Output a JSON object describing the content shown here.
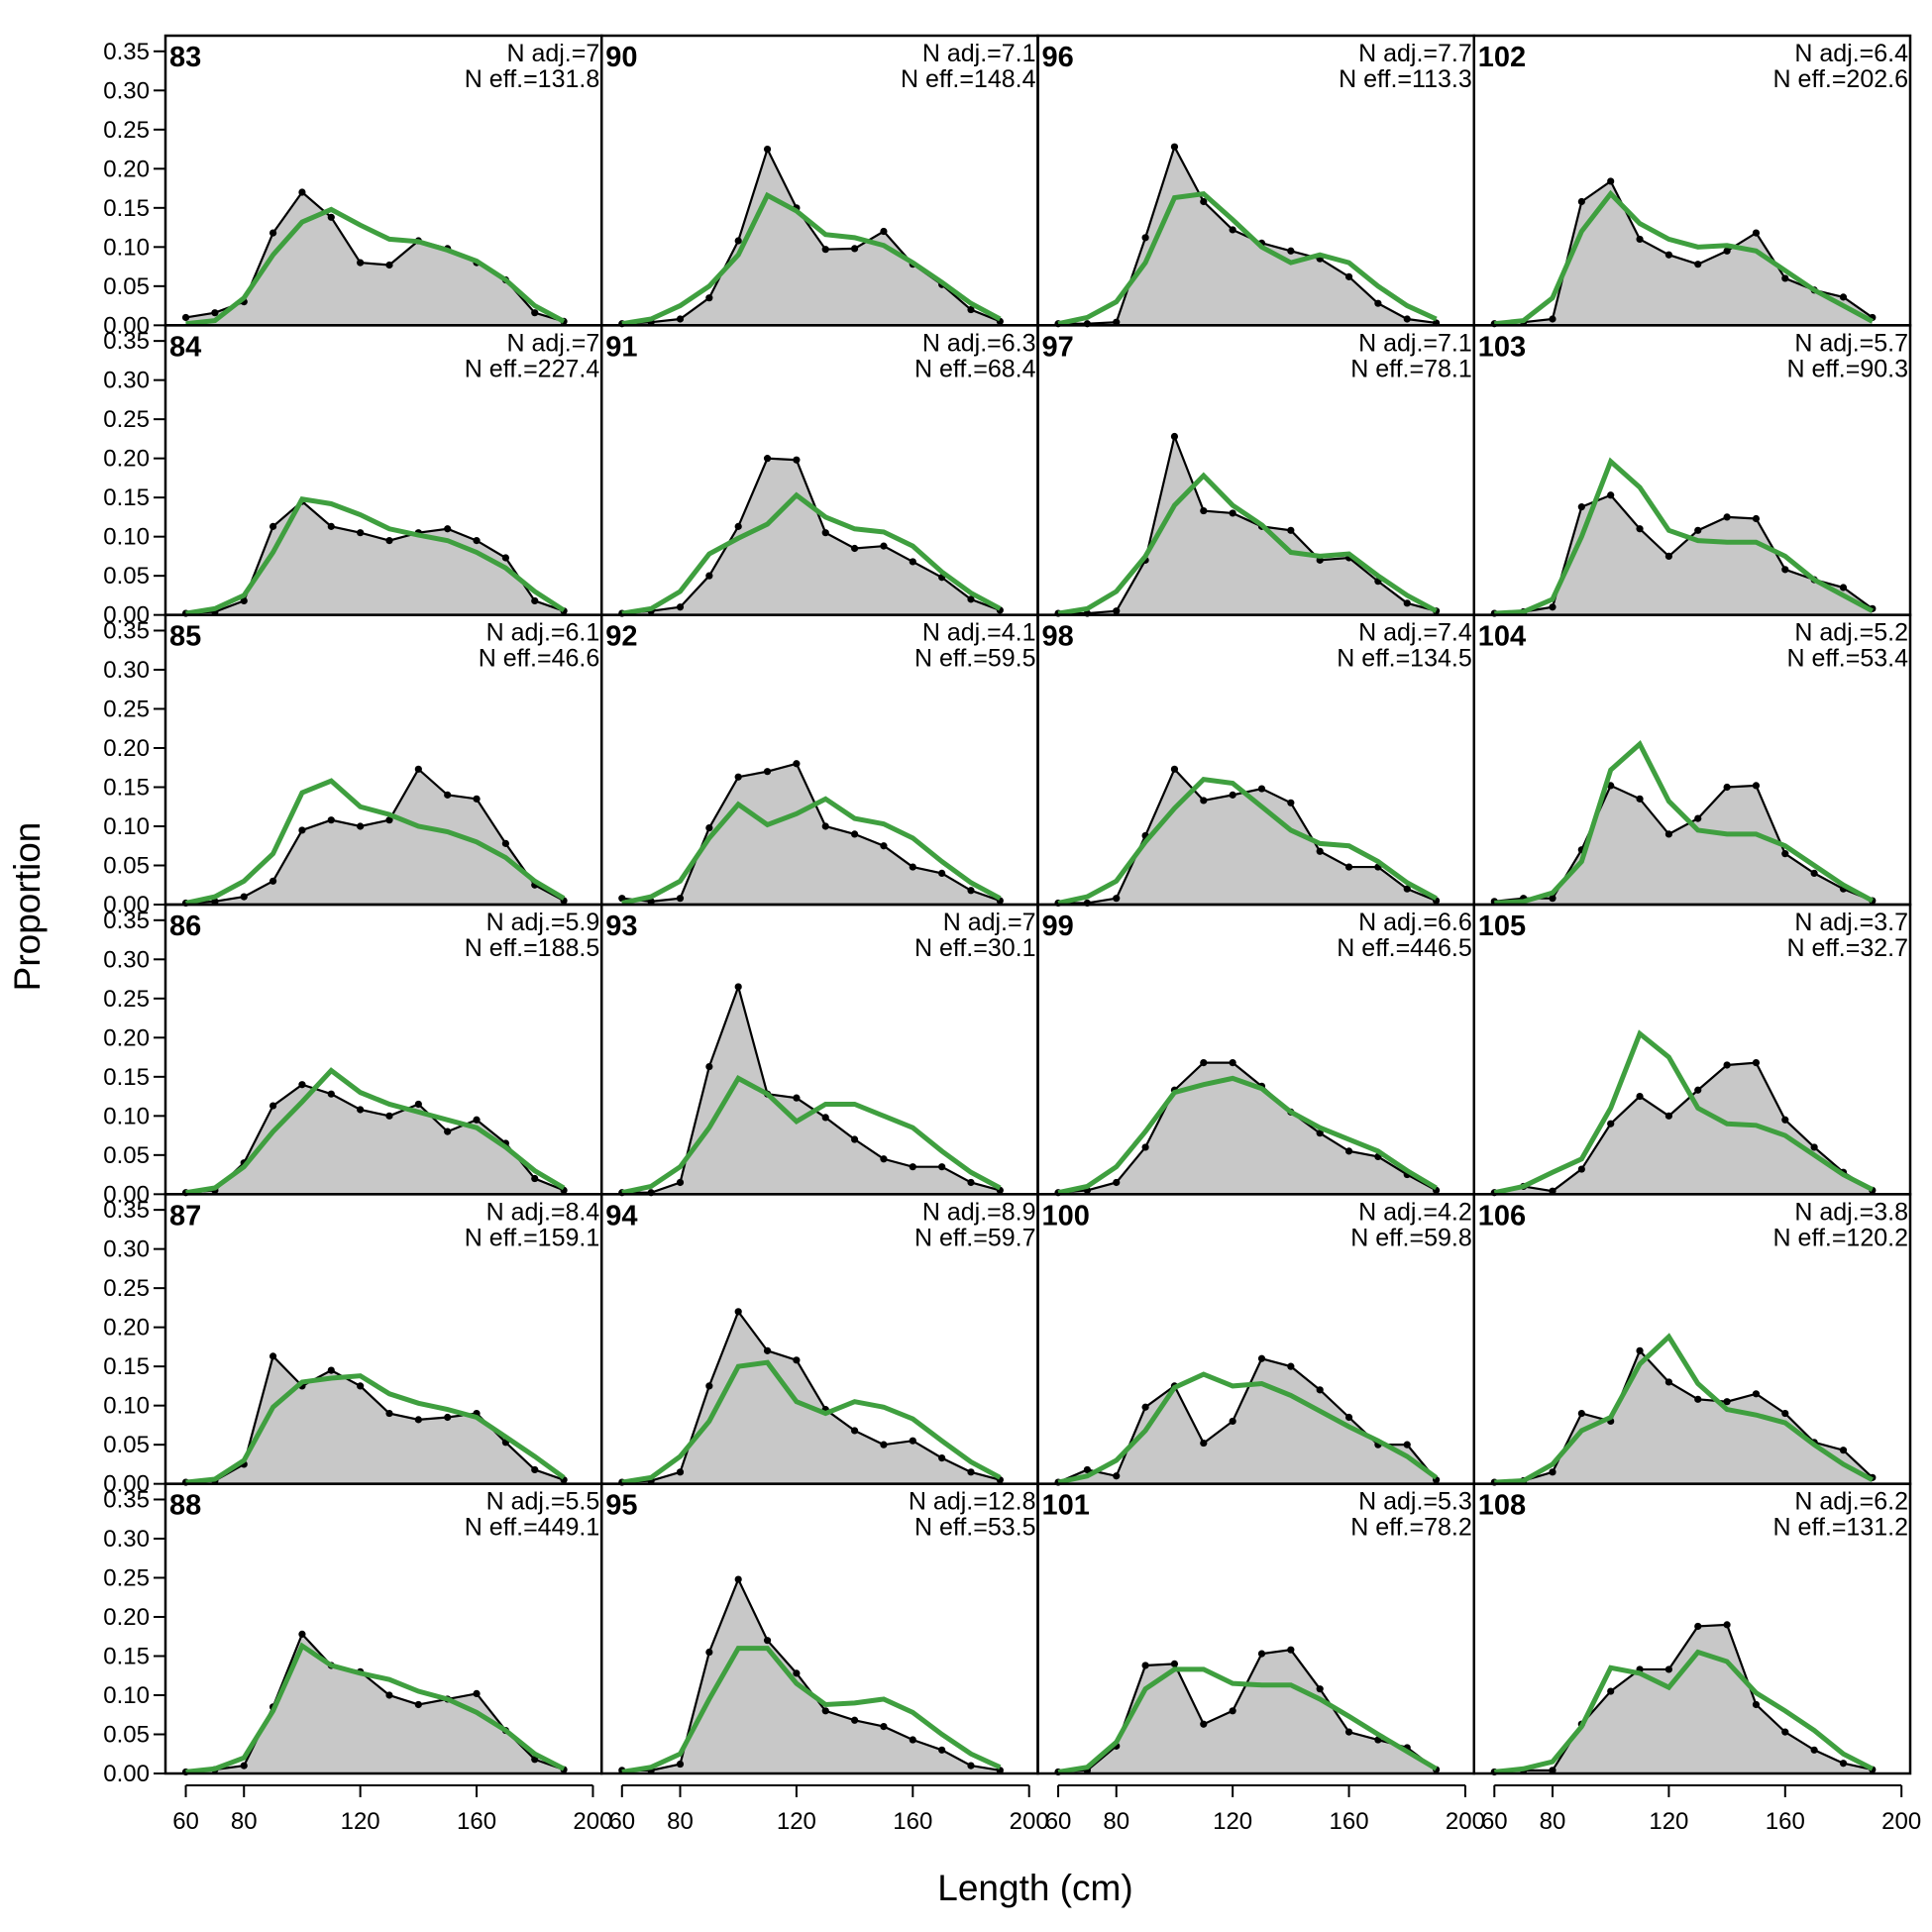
{
  "chart_data": {
    "type": "line",
    "xlabel": "Length (cm)",
    "ylabel": "Proportion",
    "xlim": [
      53,
      203
    ],
    "ylim": [
      0,
      0.37
    ],
    "x_ticks": [
      60,
      80,
      120,
      160,
      200
    ],
    "y_ticks": [
      "0.00",
      "0.05",
      "0.10",
      "0.15",
      "0.20",
      "0.25",
      "0.30",
      "0.35"
    ],
    "x": [
      60,
      70,
      80,
      90,
      100,
      110,
      120,
      130,
      140,
      150,
      160,
      170,
      180,
      190
    ],
    "grid": "4 columns x 6 rows",
    "colors": {
      "observed_fill": "#c8c8c8",
      "observed_line": "#000000",
      "expected_line": "#3f9f3f"
    },
    "panels": [
      {
        "label": "83",
        "n_adj": "N adj.=7",
        "n_eff": "N eff.=131.8",
        "observed": [
          0.01,
          0.016,
          0.03,
          0.118,
          0.17,
          0.138,
          0.08,
          0.077,
          0.108,
          0.098,
          0.08,
          0.058,
          0.016,
          0.005
        ],
        "expected": [
          0.002,
          0.006,
          0.035,
          0.09,
          0.132,
          0.148,
          0.128,
          0.11,
          0.107,
          0.096,
          0.082,
          0.058,
          0.025,
          0.005
        ]
      },
      {
        "label": "90",
        "n_adj": "N adj.=7.1",
        "n_eff": "N eff.=148.4",
        "observed": [
          0.002,
          0.004,
          0.008,
          0.035,
          0.108,
          0.225,
          0.15,
          0.097,
          0.098,
          0.12,
          0.078,
          0.052,
          0.02,
          0.005
        ],
        "expected": [
          0.002,
          0.008,
          0.025,
          0.05,
          0.09,
          0.166,
          0.146,
          0.116,
          0.112,
          0.102,
          0.08,
          0.055,
          0.028,
          0.008
        ]
      },
      {
        "label": "96",
        "n_adj": "N adj.=7.7",
        "n_eff": "N eff.=113.3",
        "observed": [
          0.002,
          0.002,
          0.004,
          0.112,
          0.228,
          0.158,
          0.122,
          0.105,
          0.095,
          0.085,
          0.062,
          0.028,
          0.008,
          0.003
        ],
        "expected": [
          0.002,
          0.01,
          0.03,
          0.08,
          0.163,
          0.168,
          0.135,
          0.1,
          0.08,
          0.09,
          0.08,
          0.05,
          0.025,
          0.008
        ]
      },
      {
        "label": "102",
        "n_adj": "N adj.=6.4",
        "n_eff": "N eff.=202.6",
        "observed": [
          0.002,
          0.004,
          0.008,
          0.158,
          0.184,
          0.11,
          0.09,
          0.078,
          0.095,
          0.118,
          0.06,
          0.045,
          0.036,
          0.01
        ],
        "expected": [
          0.002,
          0.006,
          0.035,
          0.12,
          0.168,
          0.13,
          0.11,
          0.1,
          0.102,
          0.095,
          0.07,
          0.045,
          0.025,
          0.005
        ]
      },
      {
        "label": "84",
        "n_adj": "N adj.=7",
        "n_eff": "N eff.=227.4",
        "observed": [
          0.002,
          0.004,
          0.018,
          0.113,
          0.145,
          0.113,
          0.105,
          0.095,
          0.105,
          0.11,
          0.095,
          0.073,
          0.018,
          0.005
        ],
        "expected": [
          0.002,
          0.008,
          0.025,
          0.08,
          0.148,
          0.142,
          0.128,
          0.11,
          0.102,
          0.095,
          0.08,
          0.06,
          0.03,
          0.006
        ]
      },
      {
        "label": "91",
        "n_adj": "N adj.=6.3",
        "n_eff": "N eff.=68.4",
        "observed": [
          0.002,
          0.005,
          0.01,
          0.05,
          0.113,
          0.2,
          0.198,
          0.105,
          0.085,
          0.088,
          0.068,
          0.048,
          0.02,
          0.006
        ],
        "expected": [
          0.002,
          0.008,
          0.03,
          0.078,
          0.098,
          0.116,
          0.153,
          0.125,
          0.11,
          0.106,
          0.088,
          0.055,
          0.028,
          0.008
        ]
      },
      {
        "label": "97",
        "n_adj": "N adj.=7.1",
        "n_eff": "N eff.=78.1",
        "observed": [
          0.002,
          0.002,
          0.005,
          0.07,
          0.228,
          0.133,
          0.13,
          0.113,
          0.108,
          0.07,
          0.073,
          0.043,
          0.015,
          0.005
        ],
        "expected": [
          0.002,
          0.008,
          0.03,
          0.075,
          0.14,
          0.178,
          0.14,
          0.115,
          0.08,
          0.075,
          0.078,
          0.05,
          0.025,
          0.005
        ]
      },
      {
        "label": "103",
        "n_adj": "N adj.=5.7",
        "n_eff": "N eff.=90.3",
        "observed": [
          0.002,
          0.004,
          0.01,
          0.138,
          0.153,
          0.11,
          0.075,
          0.108,
          0.125,
          0.123,
          0.058,
          0.045,
          0.035,
          0.008
        ],
        "expected": [
          0.002,
          0.004,
          0.02,
          0.1,
          0.196,
          0.163,
          0.108,
          0.095,
          0.093,
          0.093,
          0.075,
          0.045,
          0.025,
          0.005
        ]
      },
      {
        "label": "85",
        "n_adj": "N adj.=6.1",
        "n_eff": "N eff.=46.6",
        "observed": [
          0.002,
          0.004,
          0.01,
          0.03,
          0.095,
          0.108,
          0.1,
          0.108,
          0.173,
          0.14,
          0.135,
          0.078,
          0.025,
          0.005
        ],
        "expected": [
          0.002,
          0.01,
          0.03,
          0.065,
          0.143,
          0.158,
          0.125,
          0.115,
          0.1,
          0.093,
          0.08,
          0.06,
          0.03,
          0.008
        ]
      },
      {
        "label": "92",
        "n_adj": "N adj.=4.1",
        "n_eff": "N eff.=59.5",
        "observed": [
          0.008,
          0.004,
          0.008,
          0.098,
          0.163,
          0.17,
          0.18,
          0.1,
          0.09,
          0.075,
          0.048,
          0.04,
          0.018,
          0.005
        ],
        "expected": [
          0.002,
          0.01,
          0.03,
          0.085,
          0.128,
          0.102,
          0.116,
          0.135,
          0.11,
          0.103,
          0.085,
          0.055,
          0.028,
          0.008
        ]
      },
      {
        "label": "98",
        "n_adj": "N adj.=7.4",
        "n_eff": "N eff.=134.5",
        "observed": [
          0.002,
          0.002,
          0.008,
          0.088,
          0.173,
          0.133,
          0.14,
          0.148,
          0.13,
          0.068,
          0.048,
          0.048,
          0.02,
          0.005
        ],
        "expected": [
          0.002,
          0.01,
          0.03,
          0.08,
          0.123,
          0.16,
          0.155,
          0.125,
          0.095,
          0.078,
          0.075,
          0.055,
          0.028,
          0.008
        ]
      },
      {
        "label": "104",
        "n_adj": "N adj.=5.2",
        "n_eff": "N eff.=53.4",
        "observed": [
          0.004,
          0.008,
          0.008,
          0.07,
          0.152,
          0.135,
          0.09,
          0.11,
          0.15,
          0.152,
          0.065,
          0.04,
          0.02,
          0.005
        ],
        "expected": [
          0.002,
          0.004,
          0.015,
          0.055,
          0.172,
          0.205,
          0.132,
          0.095,
          0.09,
          0.09,
          0.075,
          0.05,
          0.025,
          0.005
        ]
      },
      {
        "label": "86",
        "n_adj": "N adj.=5.9",
        "n_eff": "N eff.=188.5",
        "observed": [
          0.002,
          0.005,
          0.04,
          0.113,
          0.14,
          0.128,
          0.108,
          0.1,
          0.115,
          0.08,
          0.095,
          0.065,
          0.02,
          0.005
        ],
        "expected": [
          0.002,
          0.008,
          0.035,
          0.08,
          0.118,
          0.158,
          0.13,
          0.115,
          0.105,
          0.095,
          0.085,
          0.06,
          0.03,
          0.008
        ]
      },
      {
        "label": "93",
        "n_adj": "N adj.=7",
        "n_eff": "N eff.=30.1",
        "observed": [
          0.002,
          0.002,
          0.015,
          0.163,
          0.265,
          0.128,
          0.123,
          0.098,
          0.07,
          0.045,
          0.035,
          0.035,
          0.015,
          0.005
        ],
        "expected": [
          0.002,
          0.01,
          0.035,
          0.085,
          0.148,
          0.128,
          0.093,
          0.115,
          0.115,
          0.1,
          0.085,
          0.055,
          0.028,
          0.008
        ]
      },
      {
        "label": "99",
        "n_adj": "N adj.=6.6",
        "n_eff": "N eff.=446.5",
        "observed": [
          0.002,
          0.005,
          0.015,
          0.06,
          0.133,
          0.168,
          0.168,
          0.138,
          0.105,
          0.078,
          0.055,
          0.048,
          0.025,
          0.005
        ],
        "expected": [
          0.002,
          0.01,
          0.035,
          0.08,
          0.13,
          0.14,
          0.148,
          0.135,
          0.105,
          0.085,
          0.07,
          0.055,
          0.03,
          0.008
        ]
      },
      {
        "label": "105",
        "n_adj": "N adj.=3.7",
        "n_eff": "N eff.=32.7",
        "observed": [
          0.002,
          0.01,
          0.004,
          0.032,
          0.09,
          0.125,
          0.1,
          0.133,
          0.165,
          0.168,
          0.095,
          0.06,
          0.028,
          0.005
        ],
        "expected": [
          0.002,
          0.01,
          0.028,
          0.045,
          0.11,
          0.205,
          0.175,
          0.11,
          0.09,
          0.088,
          0.075,
          0.05,
          0.025,
          0.006
        ]
      },
      {
        "label": "87",
        "n_adj": "N adj.=8.4",
        "n_eff": "N eff.=159.1",
        "observed": [
          0.002,
          0.004,
          0.025,
          0.163,
          0.125,
          0.145,
          0.125,
          0.09,
          0.082,
          0.085,
          0.09,
          0.053,
          0.018,
          0.005
        ],
        "expected": [
          0.002,
          0.006,
          0.03,
          0.098,
          0.13,
          0.135,
          0.138,
          0.115,
          0.103,
          0.095,
          0.085,
          0.06,
          0.035,
          0.008
        ]
      },
      {
        "label": "94",
        "n_adj": "N adj.=8.9",
        "n_eff": "N eff.=59.7",
        "observed": [
          0.002,
          0.004,
          0.015,
          0.125,
          0.22,
          0.17,
          0.158,
          0.095,
          0.068,
          0.05,
          0.055,
          0.033,
          0.015,
          0.005
        ],
        "expected": [
          0.002,
          0.008,
          0.035,
          0.08,
          0.15,
          0.155,
          0.105,
          0.09,
          0.105,
          0.098,
          0.083,
          0.055,
          0.028,
          0.008
        ]
      },
      {
        "label": "100",
        "n_adj": "N adj.=4.2",
        "n_eff": "N eff.=59.8",
        "observed": [
          0.002,
          0.018,
          0.01,
          0.098,
          0.125,
          0.052,
          0.08,
          0.16,
          0.15,
          0.12,
          0.085,
          0.05,
          0.05,
          0.005
        ],
        "expected": [
          0.002,
          0.01,
          0.03,
          0.068,
          0.123,
          0.14,
          0.125,
          0.128,
          0.113,
          0.093,
          0.073,
          0.055,
          0.035,
          0.008
        ]
      },
      {
        "label": "106",
        "n_adj": "N adj.=3.8",
        "n_eff": "N eff.=120.2",
        "observed": [
          0.002,
          0.004,
          0.015,
          0.09,
          0.08,
          0.17,
          0.13,
          0.108,
          0.105,
          0.115,
          0.09,
          0.053,
          0.043,
          0.008
        ],
        "expected": [
          0.002,
          0.004,
          0.025,
          0.068,
          0.085,
          0.153,
          0.188,
          0.128,
          0.095,
          0.088,
          0.078,
          0.05,
          0.025,
          0.005
        ]
      },
      {
        "label": "88",
        "n_adj": "N adj.=5.5",
        "n_eff": "N eff.=449.1",
        "observed": [
          0.002,
          0.005,
          0.01,
          0.085,
          0.178,
          0.138,
          0.13,
          0.1,
          0.088,
          0.095,
          0.102,
          0.055,
          0.018,
          0.005
        ],
        "expected": [
          0.002,
          0.006,
          0.02,
          0.08,
          0.163,
          0.138,
          0.128,
          0.12,
          0.105,
          0.095,
          0.078,
          0.055,
          0.025,
          0.006
        ]
      },
      {
        "label": "95",
        "n_adj": "N adj.=12.8",
        "n_eff": "N eff.=53.5",
        "observed": [
          0.004,
          0.004,
          0.012,
          0.155,
          0.248,
          0.17,
          0.128,
          0.08,
          0.068,
          0.06,
          0.043,
          0.03,
          0.01,
          0.004
        ],
        "expected": [
          0.002,
          0.008,
          0.025,
          0.095,
          0.16,
          0.16,
          0.115,
          0.088,
          0.09,
          0.095,
          0.078,
          0.05,
          0.025,
          0.008
        ]
      },
      {
        "label": "101",
        "n_adj": "N adj.=5.3",
        "n_eff": "N eff.=78.2",
        "observed": [
          0.002,
          0.004,
          0.035,
          0.138,
          0.14,
          0.063,
          0.08,
          0.153,
          0.158,
          0.108,
          0.053,
          0.043,
          0.033,
          0.005
        ],
        "expected": [
          0.002,
          0.008,
          0.04,
          0.108,
          0.133,
          0.133,
          0.115,
          0.113,
          0.113,
          0.095,
          0.073,
          0.05,
          0.028,
          0.006
        ]
      },
      {
        "label": "108",
        "n_adj": "N adj.=6.2",
        "n_eff": "N eff.=131.2",
        "observed": [
          0.002,
          0.004,
          0.004,
          0.063,
          0.105,
          0.133,
          0.133,
          0.188,
          0.19,
          0.088,
          0.053,
          0.03,
          0.013,
          0.005
        ],
        "expected": [
          0.002,
          0.006,
          0.015,
          0.06,
          0.135,
          0.128,
          0.11,
          0.155,
          0.143,
          0.103,
          0.08,
          0.055,
          0.025,
          0.006
        ]
      }
    ]
  }
}
